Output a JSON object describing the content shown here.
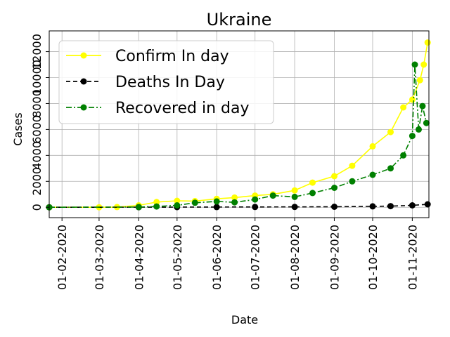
{
  "chart_data": {
    "type": "line",
    "title": "Ukraine",
    "xlabel": "Date",
    "ylabel": "Cases",
    "grid": true,
    "legend_position": "top-left",
    "x_axis": {
      "type": "date",
      "range": [
        "2020-01-22",
        "2020-11-14"
      ],
      "tick_values": [
        "2020-02-01",
        "2020-03-01",
        "2020-04-01",
        "2020-05-01",
        "2020-06-01",
        "2020-07-01",
        "2020-08-01",
        "2020-09-01",
        "2020-10-01",
        "2020-11-01"
      ],
      "tick_labels": [
        "01-02-2020",
        "01-03-2020",
        "01-04-2020",
        "01-05-2020",
        "01-06-2020",
        "01-07-2020",
        "01-08-2020",
        "01-09-2020",
        "01-10-2020",
        "01-11-2020"
      ]
    },
    "y_axis": {
      "range": [
        -800,
        13600
      ],
      "tick_values": [
        0,
        2000,
        4000,
        6000,
        8000,
        10000,
        12000
      ],
      "tick_labels": [
        "0",
        "2000",
        "4000",
        "6000",
        "8000",
        "10000",
        "12000"
      ]
    },
    "series": [
      {
        "name": "Confirm In day",
        "color": "#ffff00",
        "line_style": "solid",
        "marker": "circle",
        "points": [
          [
            "2020-01-22",
            0
          ],
          [
            "2020-03-01",
            2
          ],
          [
            "2020-03-15",
            20
          ],
          [
            "2020-04-01",
            150
          ],
          [
            "2020-04-15",
            400
          ],
          [
            "2020-05-01",
            500
          ],
          [
            "2020-05-15",
            480
          ],
          [
            "2020-06-01",
            650
          ],
          [
            "2020-06-15",
            750
          ],
          [
            "2020-07-01",
            900
          ],
          [
            "2020-07-15",
            1000
          ],
          [
            "2020-08-01",
            1300
          ],
          [
            "2020-08-15",
            1900
          ],
          [
            "2020-09-01",
            2400
          ],
          [
            "2020-09-15",
            3200
          ],
          [
            "2020-10-01",
            4700
          ],
          [
            "2020-10-15",
            5800
          ],
          [
            "2020-10-25",
            7700
          ],
          [
            "2020-11-01",
            8300
          ],
          [
            "2020-11-07",
            9800
          ],
          [
            "2020-11-10",
            11000
          ],
          [
            "2020-11-13",
            12700
          ]
        ]
      },
      {
        "name": "Deaths In Day",
        "color": "#000000",
        "line_style": "dashed",
        "marker": "circle",
        "points": [
          [
            "2020-01-22",
            0
          ],
          [
            "2020-04-01",
            5
          ],
          [
            "2020-05-01",
            12
          ],
          [
            "2020-06-01",
            18
          ],
          [
            "2020-07-01",
            22
          ],
          [
            "2020-08-01",
            30
          ],
          [
            "2020-09-01",
            40
          ],
          [
            "2020-10-01",
            70
          ],
          [
            "2020-10-15",
            90
          ],
          [
            "2020-11-01",
            150
          ],
          [
            "2020-11-13",
            230
          ]
        ]
      },
      {
        "name": "Recovered in day",
        "color": "#008000",
        "line_style": "dashdot",
        "marker": "circle",
        "points": [
          [
            "2020-01-22",
            0
          ],
          [
            "2020-04-01",
            20
          ],
          [
            "2020-04-15",
            60
          ],
          [
            "2020-05-01",
            150
          ],
          [
            "2020-05-15",
            350
          ],
          [
            "2020-06-01",
            450
          ],
          [
            "2020-06-15",
            380
          ],
          [
            "2020-07-01",
            600
          ],
          [
            "2020-07-15",
            900
          ],
          [
            "2020-08-01",
            800
          ],
          [
            "2020-08-15",
            1100
          ],
          [
            "2020-09-01",
            1500
          ],
          [
            "2020-09-15",
            2000
          ],
          [
            "2020-10-01",
            2500
          ],
          [
            "2020-10-15",
            3000
          ],
          [
            "2020-10-25",
            4000
          ],
          [
            "2020-11-01",
            5500
          ],
          [
            "2020-11-03",
            11000
          ],
          [
            "2020-11-06",
            6000
          ],
          [
            "2020-11-09",
            7800
          ],
          [
            "2020-11-12",
            6500
          ]
        ]
      }
    ]
  }
}
